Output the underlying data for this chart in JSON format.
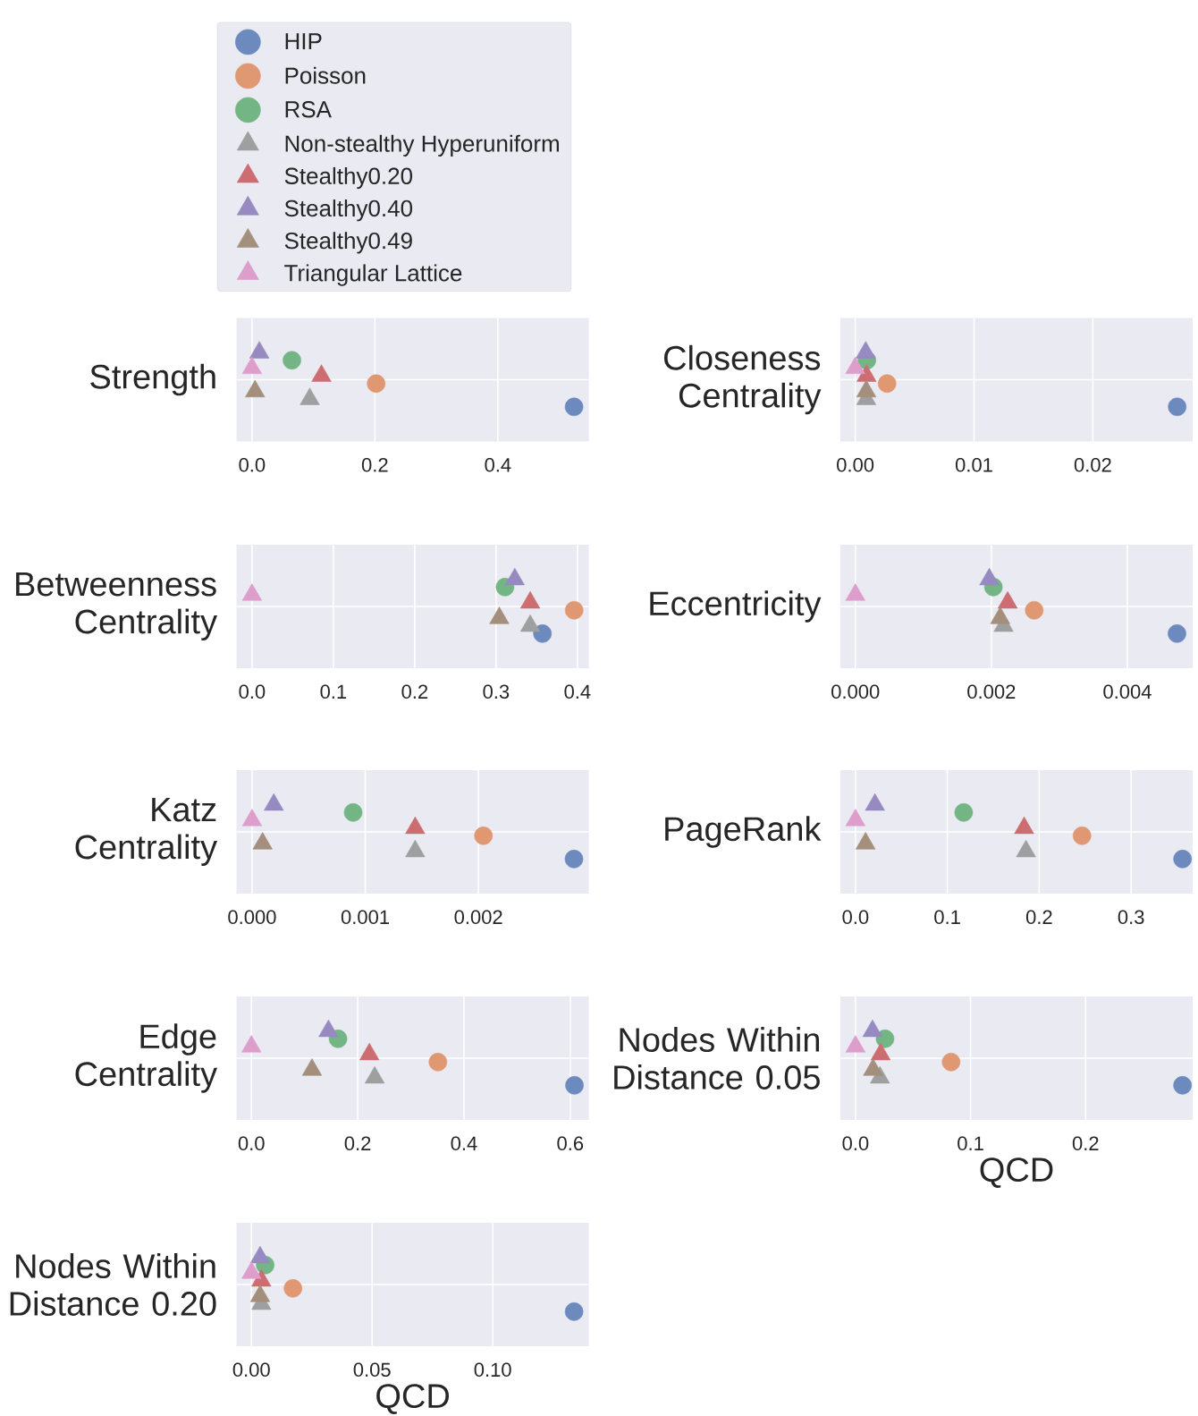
{
  "chart_data": [
    {
      "type": "scatter",
      "orientation": "horizontal",
      "categories": [
        null
      ],
      "ylabel": "Strength",
      "xlim": [
        -0.0251,
        0.548
      ],
      "xticks": [
        {
          "value": 0,
          "label": "0.0"
        },
        {
          "value": 0.2,
          "label": "0.2"
        },
        {
          "value": 0.4,
          "label": "0.4"
        }
      ],
      "grid": true,
      "legend": "top",
      "series": [
        {
          "name": "HIP",
          "color": "#6c8abd",
          "marker": "circle",
          "values": [
            0.524
          ]
        },
        {
          "name": "Poisson",
          "color": "#e09872",
          "marker": "circle",
          "values": [
            0.202
          ]
        },
        {
          "name": "RSA",
          "color": "#73b584",
          "marker": "circle",
          "values": [
            0.065
          ]
        },
        {
          "name": "Non-stealthy Hyperuniform",
          "color": "#9f9fa0",
          "marker": "triangle",
          "values": [
            0.094
          ]
        },
        {
          "name": "Stealthy0.20",
          "color": "#cc6d72",
          "marker": "triangle",
          "values": [
            0.113
          ]
        },
        {
          "name": "Stealthy0.40",
          "color": "#968ac0",
          "marker": "triangle",
          "values": [
            0.012
          ]
        },
        {
          "name": "Stealthy0.49",
          "color": "#a48f7d",
          "marker": "triangle",
          "values": [
            0.005
          ]
        },
        {
          "name": "Triangular Lattice",
          "color": "#dd9ecc",
          "marker": "triangle",
          "values": [
            0.0
          ]
        }
      ]
    },
    {
      "type": "scatter",
      "orientation": "horizontal",
      "categories": [
        null
      ],
      "ylabel": "Closeness Centrality",
      "xlim": [
        -0.00125,
        0.0284
      ],
      "xticks": [
        {
          "value": 0,
          "label": "0.00"
        },
        {
          "value": 0.01,
          "label": "0.01"
        },
        {
          "value": 0.02,
          "label": "0.02"
        }
      ],
      "grid": true,
      "series": [
        {
          "color": "#6c8abd",
          "marker": "circle",
          "values": [
            0.0271
          ]
        },
        {
          "color": "#e09872",
          "marker": "circle",
          "values": [
            0.00268
          ]
        },
        {
          "color": "#73b584",
          "marker": "circle",
          "values": [
            0.00098
          ]
        },
        {
          "color": "#9f9fa0",
          "marker": "triangle",
          "values": [
            0.00093
          ]
        },
        {
          "color": "#cc6d72",
          "marker": "triangle",
          "values": [
            0.00095
          ]
        },
        {
          "color": "#968ac0",
          "marker": "triangle",
          "values": [
            0.00088
          ]
        },
        {
          "color": "#a48f7d",
          "marker": "triangle",
          "values": [
            0.00093
          ]
        },
        {
          "color": "#dd9ecc",
          "marker": "triangle",
          "values": [
            0.0
          ]
        }
      ]
    },
    {
      "type": "scatter",
      "orientation": "horizontal",
      "categories": [
        null
      ],
      "ylabel": "Betweenness Centrality",
      "xlim": [
        -0.019,
        0.414
      ],
      "xticks": [
        {
          "value": 0,
          "label": "0.0"
        },
        {
          "value": 0.1,
          "label": "0.1"
        },
        {
          "value": 0.2,
          "label": "0.2"
        },
        {
          "value": 0.3,
          "label": "0.3"
        },
        {
          "value": 0.4,
          "label": "0.4"
        }
      ],
      "grid": true,
      "series": [
        {
          "color": "#6c8abd",
          "marker": "circle",
          "values": [
            0.357
          ]
        },
        {
          "color": "#e09872",
          "marker": "circle",
          "values": [
            0.396
          ]
        },
        {
          "color": "#73b584",
          "marker": "circle",
          "values": [
            0.311
          ]
        },
        {
          "color": "#9f9fa0",
          "marker": "triangle",
          "values": [
            0.342
          ]
        },
        {
          "color": "#cc6d72",
          "marker": "triangle",
          "values": [
            0.342
          ]
        },
        {
          "color": "#968ac0",
          "marker": "triangle",
          "values": [
            0.323
          ]
        },
        {
          "color": "#a48f7d",
          "marker": "triangle",
          "values": [
            0.304
          ]
        },
        {
          "color": "#dd9ecc",
          "marker": "triangle",
          "values": [
            0.0
          ]
        }
      ]
    },
    {
      "type": "scatter",
      "orientation": "horizontal",
      "categories": [
        null
      ],
      "ylabel": "Eccentricity",
      "xlim": [
        -0.00022,
        0.00496
      ],
      "xticks": [
        {
          "value": 0,
          "label": "0.000"
        },
        {
          "value": 0.002,
          "label": "0.002"
        },
        {
          "value": 0.004,
          "label": "0.004"
        }
      ],
      "grid": true,
      "series": [
        {
          "color": "#6c8abd",
          "marker": "circle",
          "values": [
            0.00473
          ]
        },
        {
          "color": "#e09872",
          "marker": "circle",
          "values": [
            0.00263
          ]
        },
        {
          "color": "#73b584",
          "marker": "circle",
          "values": [
            0.00203
          ]
        },
        {
          "color": "#9f9fa0",
          "marker": "triangle",
          "values": [
            0.00218
          ]
        },
        {
          "color": "#cc6d72",
          "marker": "triangle",
          "values": [
            0.00224
          ]
        },
        {
          "color": "#968ac0",
          "marker": "triangle",
          "values": [
            0.00197
          ]
        },
        {
          "color": "#a48f7d",
          "marker": "triangle",
          "values": [
            0.00213
          ]
        },
        {
          "color": "#dd9ecc",
          "marker": "triangle",
          "values": [
            0.0
          ]
        }
      ]
    },
    {
      "type": "scatter",
      "orientation": "horizontal",
      "categories": [
        null
      ],
      "ylabel": "Katz Centrality",
      "xlim": [
        -0.000137,
        0.002975
      ],
      "xticks": [
        {
          "value": 0,
          "label": "0.000"
        },
        {
          "value": 0.001,
          "label": "0.001"
        },
        {
          "value": 0.002,
          "label": "0.002"
        }
      ],
      "grid": true,
      "series": [
        {
          "color": "#6c8abd",
          "marker": "circle",
          "values": [
            0.002844
          ]
        },
        {
          "color": "#e09872",
          "marker": "circle",
          "values": [
            0.002044
          ]
        },
        {
          "color": "#73b584",
          "marker": "circle",
          "values": [
            0.000893
          ]
        },
        {
          "color": "#9f9fa0",
          "marker": "triangle",
          "values": [
            0.001441
          ]
        },
        {
          "color": "#cc6d72",
          "marker": "triangle",
          "values": [
            0.001441
          ]
        },
        {
          "color": "#968ac0",
          "marker": "triangle",
          "values": [
            0.000192
          ]
        },
        {
          "color": "#a48f7d",
          "marker": "triangle",
          "values": [
            9.3e-05
          ]
        },
        {
          "color": "#dd9ecc",
          "marker": "triangle",
          "values": [
            0.0
          ]
        }
      ]
    },
    {
      "type": "scatter",
      "orientation": "horizontal",
      "categories": [
        null
      ],
      "ylabel": "PageRank",
      "xlim": [
        -0.0164,
        0.367
      ],
      "xticks": [
        {
          "value": 0,
          "label": "0.0"
        },
        {
          "value": 0.1,
          "label": "0.1"
        },
        {
          "value": 0.2,
          "label": "0.2"
        },
        {
          "value": 0.3,
          "label": "0.3"
        }
      ],
      "grid": true,
      "series": [
        {
          "color": "#6c8abd",
          "marker": "circle",
          "values": [
            0.356
          ]
        },
        {
          "color": "#e09872",
          "marker": "circle",
          "values": [
            0.2466
          ]
        },
        {
          "color": "#73b584",
          "marker": "circle",
          "values": [
            0.1178
          ]
        },
        {
          "color": "#9f9fa0",
          "marker": "triangle",
          "values": [
            0.1856
          ]
        },
        {
          "color": "#cc6d72",
          "marker": "triangle",
          "values": [
            0.1836
          ]
        },
        {
          "color": "#968ac0",
          "marker": "triangle",
          "values": [
            0.0212
          ]
        },
        {
          "color": "#a48f7d",
          "marker": "triangle",
          "values": [
            0.011
          ]
        },
        {
          "color": "#dd9ecc",
          "marker": "triangle",
          "values": [
            0.0
          ]
        }
      ]
    },
    {
      "type": "scatter",
      "orientation": "horizontal",
      "categories": [
        null
      ],
      "ylabel": "Edge Centrality",
      "xlim": [
        -0.028,
        0.635
      ],
      "xticks": [
        {
          "value": 0,
          "label": "0.0"
        },
        {
          "value": 0.2,
          "label": "0.2"
        },
        {
          "value": 0.4,
          "label": "0.4"
        },
        {
          "value": 0.6,
          "label": "0.6"
        }
      ],
      "grid": true,
      "series": [
        {
          "color": "#6c8abd",
          "marker": "circle",
          "values": [
            0.608
          ]
        },
        {
          "color": "#e09872",
          "marker": "circle",
          "values": [
            0.351
          ]
        },
        {
          "color": "#73b584",
          "marker": "circle",
          "values": [
            0.163
          ]
        },
        {
          "color": "#9f9fa0",
          "marker": "triangle",
          "values": [
            0.232
          ]
        },
        {
          "color": "#cc6d72",
          "marker": "triangle",
          "values": [
            0.222
          ]
        },
        {
          "color": "#968ac0",
          "marker": "triangle",
          "values": [
            0.145
          ]
        },
        {
          "color": "#a48f7d",
          "marker": "triangle",
          "values": [
            0.114
          ]
        },
        {
          "color": "#dd9ecc",
          "marker": "triangle",
          "values": [
            0.0
          ]
        }
      ]
    },
    {
      "type": "scatter",
      "orientation": "horizontal",
      "categories": [
        null
      ],
      "ylabel": "Nodes Within Distance 0.05",
      "xlabel": "QCD",
      "xlim": [
        -0.0131,
        0.293
      ],
      "xticks": [
        {
          "value": 0,
          "label": "0.0"
        },
        {
          "value": 0.1,
          "label": "0.1"
        },
        {
          "value": 0.2,
          "label": "0.2"
        }
      ],
      "grid": true,
      "series": [
        {
          "color": "#6c8abd",
          "marker": "circle",
          "values": [
            0.2842
          ]
        },
        {
          "color": "#e09872",
          "marker": "circle",
          "values": [
            0.0831
          ]
        },
        {
          "color": "#73b584",
          "marker": "circle",
          "values": [
            0.0257
          ]
        },
        {
          "color": "#9f9fa0",
          "marker": "triangle",
          "values": [
            0.0213
          ]
        },
        {
          "color": "#cc6d72",
          "marker": "triangle",
          "values": [
            0.0219
          ]
        },
        {
          "color": "#968ac0",
          "marker": "triangle",
          "values": [
            0.0148
          ]
        },
        {
          "color": "#a48f7d",
          "marker": "triangle",
          "values": [
            0.0153
          ]
        },
        {
          "color": "#dd9ecc",
          "marker": "triangle",
          "values": [
            0.0
          ]
        }
      ]
    },
    {
      "type": "scatter",
      "orientation": "horizontal",
      "categories": [
        null
      ],
      "ylabel": "Nodes Within Distance 0.20",
      "xlabel": "QCD",
      "xlim": [
        -0.00617,
        0.1398
      ],
      "xticks": [
        {
          "value": 0,
          "label": "0.00"
        },
        {
          "value": 0.05,
          "label": "0.05"
        },
        {
          "value": 0.1,
          "label": "0.10"
        }
      ],
      "grid": true,
      "series": [
        {
          "color": "#6c8abd",
          "marker": "circle",
          "values": [
            0.1337
          ]
        },
        {
          "color": "#e09872",
          "marker": "circle",
          "values": [
            0.0172
          ]
        },
        {
          "color": "#73b584",
          "marker": "circle",
          "values": [
            0.0057
          ]
        },
        {
          "color": "#9f9fa0",
          "marker": "triangle",
          "values": [
            0.0041
          ]
        },
        {
          "color": "#cc6d72",
          "marker": "triangle",
          "values": [
            0.0041
          ]
        },
        {
          "color": "#968ac0",
          "marker": "triangle",
          "values": [
            0.0036
          ]
        },
        {
          "color": "#a48f7d",
          "marker": "triangle",
          "values": [
            0.0036
          ]
        },
        {
          "color": "#dd9ecc",
          "marker": "triangle",
          "values": [
            0.0
          ]
        }
      ]
    }
  ]
}
